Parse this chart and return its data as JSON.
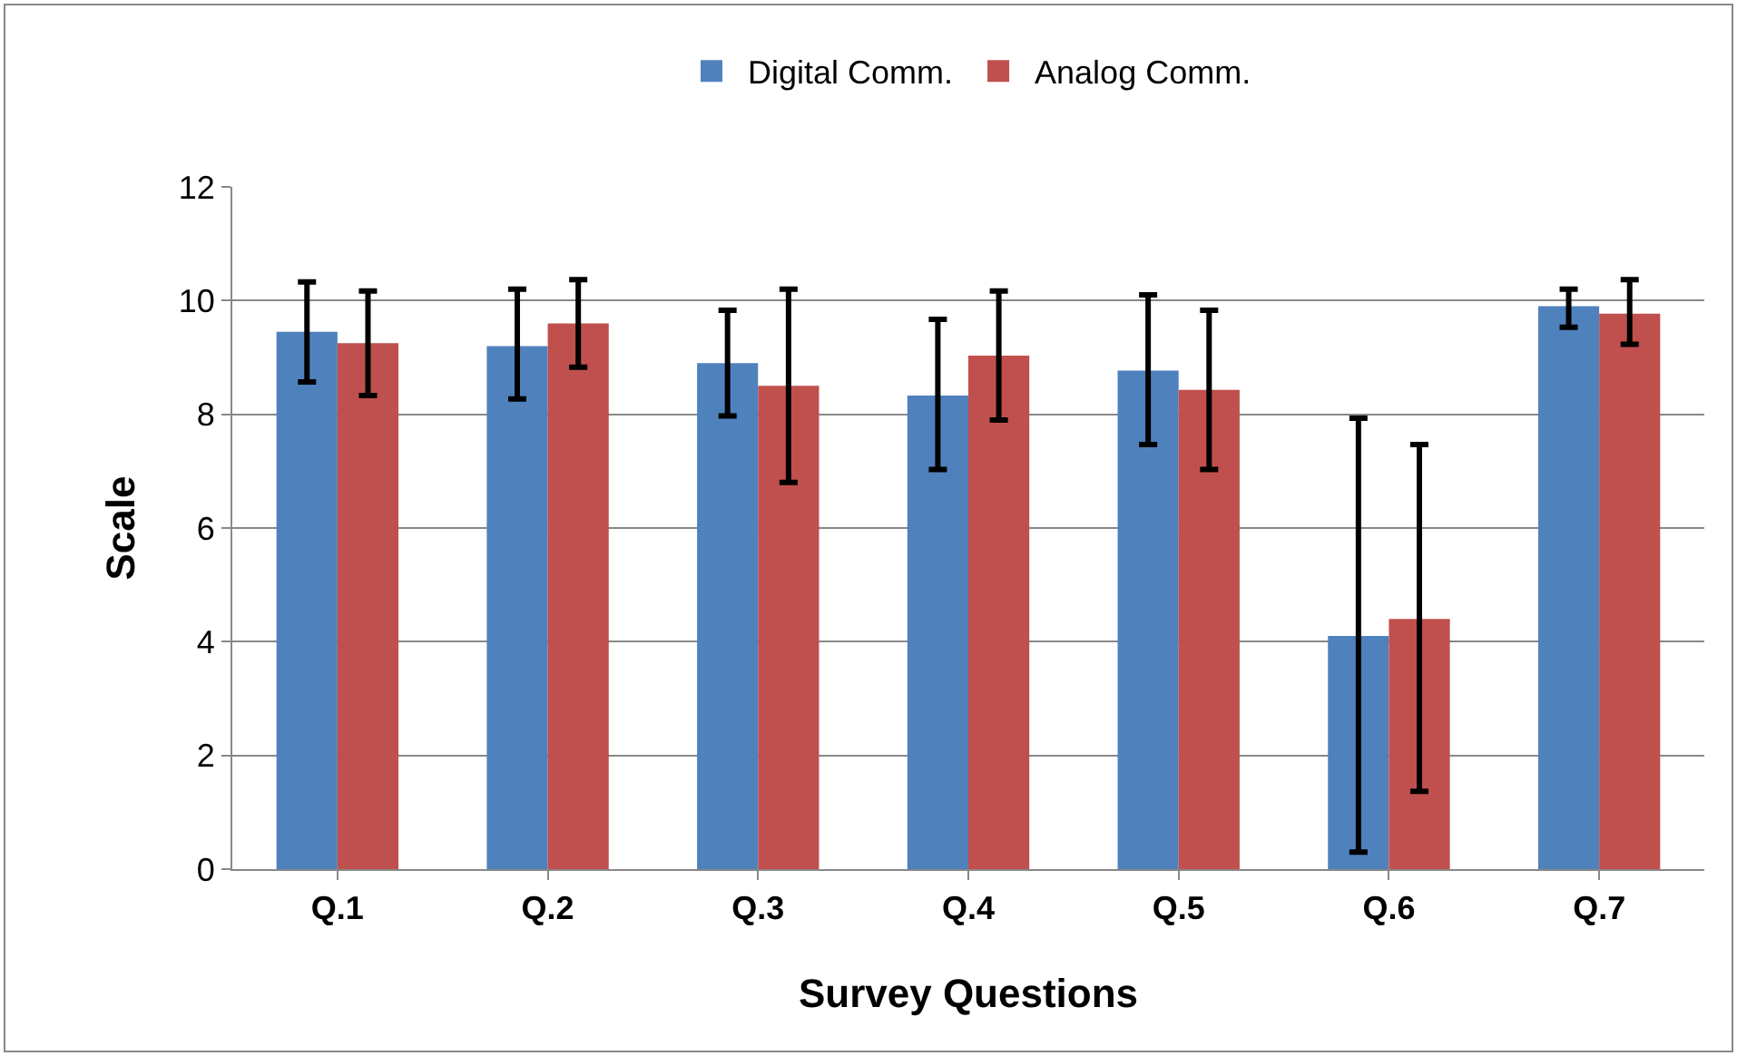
{
  "chart_data": {
    "type": "bar",
    "xlabel": "Survey Questions",
    "ylabel": "Scale",
    "categories": [
      "Q.1",
      "Q.2",
      "Q.3",
      "Q.4",
      "Q.5",
      "Q.6",
      "Q.7"
    ],
    "series": [
      {
        "name": "Digital Comm.",
        "color": "#4f81bd",
        "values": [
          9.45,
          9.2,
          8.9,
          8.33,
          8.77,
          4.1,
          9.9
        ],
        "errors": [
          [
            8.57,
            10.33
          ],
          [
            8.27,
            10.2
          ],
          [
            7.97,
            9.83
          ],
          [
            7.03,
            9.67
          ],
          [
            7.47,
            10.1
          ],
          [
            0.3,
            7.93
          ],
          [
            9.53,
            10.2
          ]
        ]
      },
      {
        "name": "Analog Comm.",
        "color": "#c0504d",
        "values": [
          9.25,
          9.6,
          8.5,
          9.03,
          8.43,
          4.4,
          9.77
        ],
        "errors": [
          [
            8.33,
            10.17
          ],
          [
            8.83,
            10.37
          ],
          [
            6.8,
            10.2
          ],
          [
            7.9,
            10.17
          ],
          [
            7.03,
            9.83
          ],
          [
            1.37,
            7.47
          ],
          [
            9.23,
            10.37
          ]
        ]
      }
    ],
    "ylim": [
      0,
      12
    ],
    "yticks": [
      0,
      2,
      4,
      6,
      8,
      10,
      12
    ],
    "grid": "y",
    "legend": "top"
  }
}
